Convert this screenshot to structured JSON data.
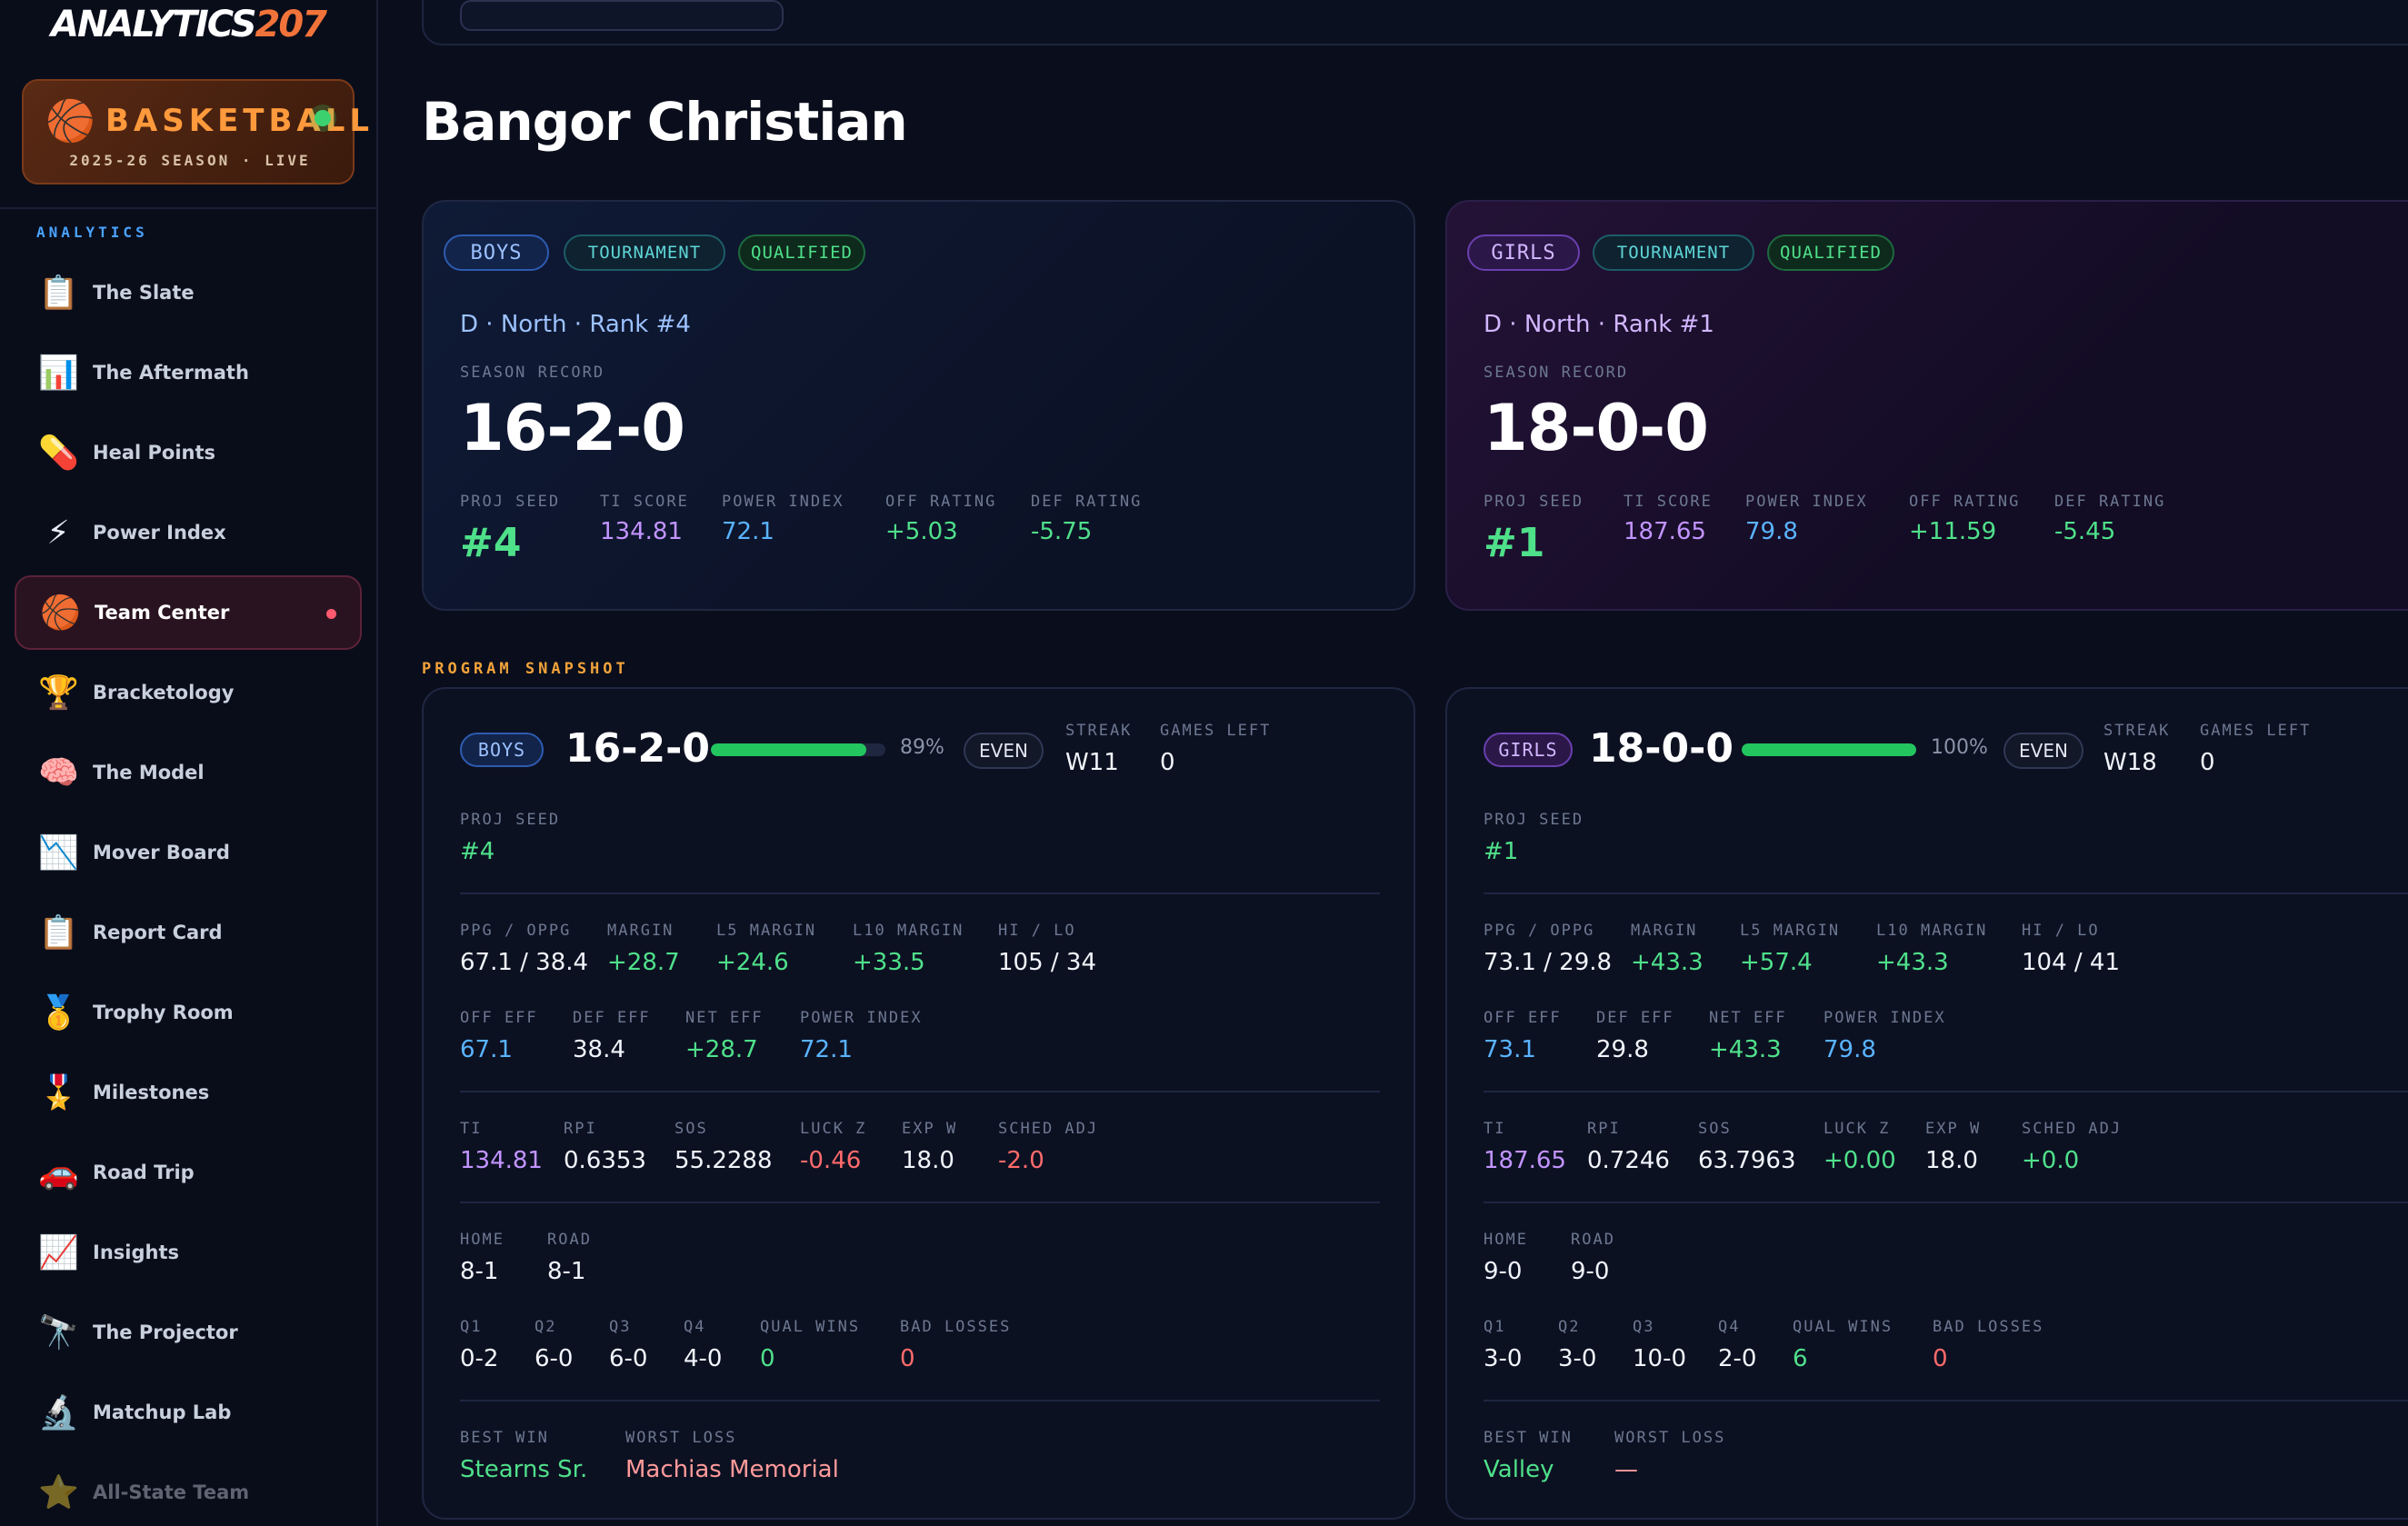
{
  "brand": {
    "main": "ANALYTICS",
    "num": "207"
  },
  "sport": {
    "icon": "🏀",
    "title": "BASKETBALL",
    "subtitle": "2025-26 SEASON · LIVE"
  },
  "sidebar": {
    "section": "ANALYTICS",
    "items": [
      {
        "icon": "📋",
        "label": "The Slate"
      },
      {
        "icon": "📊",
        "label": "The Aftermath"
      },
      {
        "icon": "💊",
        "label": "Heal Points"
      },
      {
        "icon": "⚡",
        "label": "Power Index"
      },
      {
        "icon": "🏀",
        "label": "Team Center",
        "active": true
      },
      {
        "icon": "🏆",
        "label": "Bracketology"
      },
      {
        "icon": "🧠",
        "label": "The Model"
      },
      {
        "icon": "📉",
        "label": "Mover Board"
      },
      {
        "icon": "📋",
        "label": "Report Card"
      },
      {
        "icon": "🥇",
        "label": "Trophy Room"
      },
      {
        "icon": "🎖️",
        "label": "Milestones"
      },
      {
        "icon": "🚗",
        "label": "Road Trip"
      },
      {
        "icon": "📈",
        "label": "Insights"
      },
      {
        "icon": "🔭",
        "label": "The Projector"
      },
      {
        "icon": "🔬",
        "label": "Matchup Lab"
      },
      {
        "icon": "⭐",
        "label": "All-State Team"
      }
    ]
  },
  "page": {
    "title": "Bangor Christian"
  },
  "hero": {
    "boys": {
      "gender": "BOYS",
      "tournament": "TOURNAMENT",
      "qualified": "QUALIFIED",
      "conference": "D · North · Rank #4",
      "record_label": "SEASON RECORD",
      "record": "16-2-0",
      "labels": {
        "seed": "PROJ SEED",
        "ti": "TI SCORE",
        "pi": "POWER INDEX",
        "off": "OFF RATING",
        "def": "DEF RATING"
      },
      "seed": "#4",
      "ti": "134.81",
      "pi": "72.1",
      "off": "+5.03",
      "def": "-5.75"
    },
    "girls": {
      "gender": "GIRLS",
      "tournament": "TOURNAMENT",
      "qualified": "QUALIFIED",
      "conference": "D · North · Rank #1",
      "record_label": "SEASON RECORD",
      "record": "18-0-0",
      "labels": {
        "seed": "PROJ SEED",
        "ti": "TI SCORE",
        "pi": "POWER INDEX",
        "off": "OFF RATING",
        "def": "DEF RATING"
      },
      "seed": "#1",
      "ti": "187.65",
      "pi": "79.8",
      "off": "+11.59",
      "def": "-5.45"
    }
  },
  "snapshot": {
    "label": "PROGRAM SNAPSHOT",
    "boys": {
      "gender": "BOYS",
      "record": "16-2-0",
      "win_pct": 0.89,
      "pct_text": "89%",
      "even": "EVEN",
      "l": {
        "streak": "STREAK",
        "games_left": "GAMES LEFT",
        "proj_seed": "PROJ SEED",
        "ppg": "PPG / OPPG",
        "margin": "MARGIN",
        "l5": "L5 MARGIN",
        "l10": "L10 MARGIN",
        "hilo": "HI / LO",
        "off_eff": "OFF EFF",
        "def_eff": "DEF EFF",
        "net_eff": "NET EFF",
        "power_index": "POWER INDEX",
        "ti": "TI",
        "rpi": "RPI",
        "sos": "SOS",
        "luck": "LUCK Z",
        "expw": "EXP W",
        "sched": "SCHED ADJ",
        "home": "HOME",
        "road": "ROAD",
        "q1": "Q1",
        "q2": "Q2",
        "q3": "Q3",
        "q4": "Q4",
        "qual_wins": "QUAL WINS",
        "bad_losses": "BAD LOSSES",
        "best_win": "BEST WIN",
        "worst_loss": "WORST LOSS"
      },
      "streak": "W11",
      "games_left": "0",
      "proj_seed": "#4",
      "ppg": "67.1 / 38.4",
      "margin": "+28.7",
      "l5": "+24.6",
      "l10": "+33.5",
      "hilo": "105 / 34",
      "off_eff": "67.1",
      "def_eff": "38.4",
      "net_eff": "+28.7",
      "power_index": "72.1",
      "ti": "134.81",
      "rpi": "0.6353",
      "sos": "55.2288",
      "luck": "-0.46",
      "expw": "18.0",
      "sched": "-2.0",
      "home": "8-1",
      "road": "8-1",
      "q1": "0-2",
      "q2": "6-0",
      "q3": "6-0",
      "q4": "4-0",
      "qual_wins": "0",
      "bad_losses": "0",
      "best_win": "Stearns Sr.",
      "worst_loss": "Machias Memorial"
    },
    "girls": {
      "gender": "GIRLS",
      "record": "18-0-0",
      "win_pct": 1.0,
      "pct_text": "100%",
      "even": "EVEN",
      "l": {
        "streak": "STREAK",
        "games_left": "GAMES LEFT",
        "proj_seed": "PROJ SEED",
        "ppg": "PPG / OPPG",
        "margin": "MARGIN",
        "l5": "L5 MARGIN",
        "l10": "L10 MARGIN",
        "hilo": "HI / LO",
        "off_eff": "OFF EFF",
        "def_eff": "DEF EFF",
        "net_eff": "NET EFF",
        "power_index": "POWER INDEX",
        "ti": "TI",
        "rpi": "RPI",
        "sos": "SOS",
        "luck": "LUCK Z",
        "expw": "EXP W",
        "sched": "SCHED ADJ",
        "home": "HOME",
        "road": "ROAD",
        "q1": "Q1",
        "q2": "Q2",
        "q3": "Q3",
        "q4": "Q4",
        "qual_wins": "QUAL WINS",
        "bad_losses": "BAD LOSSES",
        "best_win": "BEST WIN",
        "worst_loss": "WORST LOSS"
      },
      "streak": "W18",
      "games_left": "0",
      "proj_seed": "#1",
      "ppg": "73.1 / 29.8",
      "margin": "+43.3",
      "l5": "+57.4",
      "l10": "+43.3",
      "hilo": "104 / 41",
      "off_eff": "73.1",
      "def_eff": "29.8",
      "net_eff": "+43.3",
      "power_index": "79.8",
      "ti": "187.65",
      "rpi": "0.7246",
      "sos": "63.7963",
      "luck": "+0.00",
      "expw": "18.0",
      "sched": "+0.0",
      "home": "9-0",
      "road": "9-0",
      "q1": "3-0",
      "q2": "3-0",
      "q3": "10-0",
      "q4": "2-0",
      "qual_wins": "6",
      "bad_losses": "0",
      "best_win": "Valley",
      "worst_loss": "—"
    }
  }
}
